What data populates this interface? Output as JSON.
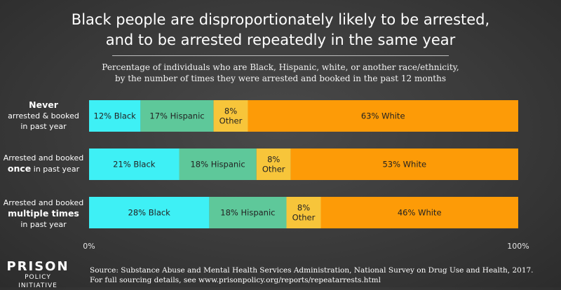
{
  "header": {
    "title_line1": "Black people are disproportionately likely to be arrested,",
    "title_line2": "and to be arrested repeatedly in the same year",
    "subtitle_line1": "Percentage of individuals who are Black, Hispanic, white, or another race/ethnicity,",
    "subtitle_line2": "by the number of times they were arrested and booked in the past 12 months"
  },
  "rows": [
    {
      "line1": "Never",
      "line2": "arrested & booked",
      "line3": "in past year"
    },
    {
      "line1": "Arrested and booked",
      "line2_bold": "once",
      "line2_rest": " in past year"
    },
    {
      "line1": "Arrested and booked",
      "line2": "multiple times",
      "line3": "in past year"
    }
  ],
  "chart_data": {
    "type": "bar",
    "orientation": "horizontal",
    "stacked": true,
    "categories": [
      "Never arrested & booked in past year",
      "Arrested and booked once in past year",
      "Arrested and booked multiple times in past year"
    ],
    "series": [
      {
        "name": "Black",
        "values": [
          12,
          21,
          28
        ],
        "color": "#3ef0f5",
        "labels": [
          "12% Black",
          "21% Black",
          "28% Black"
        ]
      },
      {
        "name": "Hispanic",
        "values": [
          17,
          18,
          18
        ],
        "color": "#5ec89a",
        "labels": [
          "17% Hispanic",
          "18% Hispanic",
          "18% Hispanic"
        ]
      },
      {
        "name": "Other",
        "values": [
          8,
          8,
          8
        ],
        "color": "#f7c53a",
        "labels": [
          "8%|Other",
          "8%|Other",
          "8%|Other"
        ]
      },
      {
        "name": "White",
        "values": [
          63,
          53,
          46
        ],
        "color": "#fd9b07",
        "labels": [
          "63% White",
          "53% White",
          "46% White"
        ]
      }
    ],
    "xlim": [
      0,
      100
    ],
    "x_tick_labels": [
      "0%",
      "100%"
    ],
    "grid": false,
    "legend": "none"
  },
  "footer": {
    "logo_line1": "PRISON",
    "logo_line2": "POLICY INITIATIVE",
    "source_line1": "Source: Substance Abuse and Mental Health Services Administration, National Survey on Drug Use and Health, 2017.",
    "source_line2": "For full sourcing details, see www.prisonpolicy.org/reports/repeatarrests.html"
  }
}
